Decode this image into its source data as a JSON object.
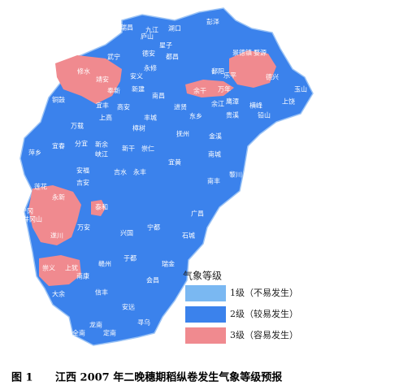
{
  "map": {
    "labels": [
      "彭泽",
      "瑞昌",
      "九江",
      "湖口",
      "庐山",
      "星子",
      "德安",
      "都昌",
      "武宁",
      "修水",
      "永修",
      "婺源",
      "景德镇",
      "鄱阳",
      "安义",
      "靖安",
      "奉新",
      "新建",
      "乐平",
      "德兴",
      "万年",
      "余干",
      "铜鼓",
      "宜丰",
      "高安",
      "南昌",
      "进贤",
      "余江",
      "鹰潭",
      "横峰",
      "玉山",
      "上饶",
      "铅山",
      "贵溪",
      "丰城",
      "东乡",
      "上高",
      "万载",
      "樟树",
      "抚州",
      "金溪",
      "萍乡",
      "宜春",
      "分宜",
      "新余",
      "新干",
      "崇仁",
      "南城",
      "峡江",
      "宜黄",
      "黎川",
      "莲花",
      "安福",
      "吉水",
      "永丰",
      "吉安",
      "南丰",
      "永新",
      "泰和",
      "广昌",
      "宁冈",
      "井冈山",
      "万安",
      "兴国",
      "宁都",
      "遂川",
      "石城",
      "于都",
      "瑞金",
      "崇义",
      "上犹",
      "赣州",
      "南康",
      "会昌",
      "大余",
      "信丰",
      "安远",
      "龙南",
      "寻乌",
      "全南",
      "定南"
    ]
  },
  "legend": {
    "title": "气象等级",
    "items": [
      "1级（不易发生）",
      "2级（较易发生）",
      "3级（容易发生）"
    ]
  },
  "caption": {
    "number": "图 1",
    "text": "江西 2007 年二晚穗期稻纵卷发生气象等级预报"
  }
}
